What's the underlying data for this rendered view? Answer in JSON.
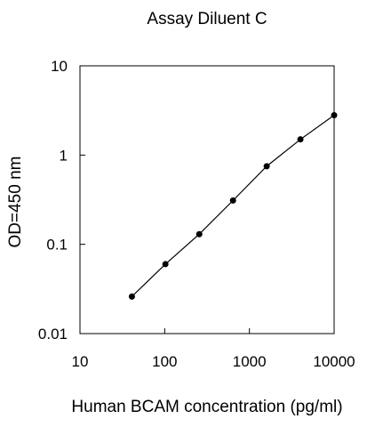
{
  "chart_data": {
    "type": "line",
    "title": "Assay Diluent C",
    "xlabel": "Human BCAM concentration (pg/ml)",
    "ylabel": "OD=450 nm",
    "x_scale": "log",
    "y_scale": "log",
    "xlim": [
      10,
      10000
    ],
    "ylim": [
      0.01,
      10
    ],
    "x_ticks": [
      "10",
      "100",
      "1000",
      "10000"
    ],
    "y_ticks": [
      "0.01",
      "0.1",
      "1",
      "10"
    ],
    "grid": false,
    "legend": "none",
    "series": [
      {
        "x": [
          41,
          102,
          256,
          640,
          1600,
          4000,
          10000
        ],
        "y": [
          0.026,
          0.06,
          0.13,
          0.31,
          0.75,
          1.5,
          2.8
        ],
        "color": "#000000",
        "marker": "circle"
      }
    ]
  }
}
